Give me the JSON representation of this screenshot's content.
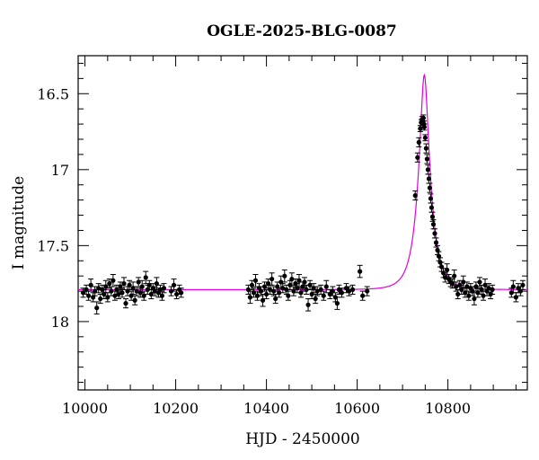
{
  "chart_data": {
    "type": "scatter",
    "title": "OGLE-2025-BLG-0087",
    "xlabel": "HJD - 2450000",
    "ylabel": "I magnitude",
    "xlim": [
      9985,
      10975
    ],
    "ylim": [
      18.45,
      16.25
    ],
    "y_inverted": true,
    "x_major_ticks": [
      10000,
      10200,
      10400,
      10600,
      10800
    ],
    "y_major_ticks": [
      16.5,
      17,
      17.5,
      18
    ],
    "y_tick_labels": [
      "16.5",
      "17",
      "17.5",
      "18"
    ],
    "x_tick_labels": [
      "10000",
      "10200",
      "10400",
      "10600",
      "10800"
    ],
    "grid": false,
    "legend": "none",
    "colors": {
      "points": "#000000",
      "model": "#e000e0",
      "axes": "#000000"
    },
    "model": {
      "baseline_mag": 17.79,
      "t0": 10748,
      "u0": 0.28,
      "tE": 28
    },
    "series": [
      {
        "values": [
          [
            9996,
            17.81,
            0.03
          ],
          [
            10003,
            17.79,
            0.03
          ],
          [
            10008,
            17.83,
            0.03
          ],
          [
            10013,
            17.76,
            0.04
          ],
          [
            10018,
            17.84,
            0.03
          ],
          [
            10022,
            17.8,
            0.03
          ],
          [
            10026,
            17.91,
            0.04
          ],
          [
            10030,
            17.78,
            0.03
          ],
          [
            10034,
            17.85,
            0.03
          ],
          [
            10038,
            17.79,
            0.03
          ],
          [
            10042,
            17.82,
            0.03
          ],
          [
            10046,
            17.77,
            0.04
          ],
          [
            10050,
            17.84,
            0.03
          ],
          [
            10054,
            17.75,
            0.03
          ],
          [
            10058,
            17.8,
            0.03
          ],
          [
            10062,
            17.73,
            0.04
          ],
          [
            10066,
            17.83,
            0.03
          ],
          [
            10070,
            17.79,
            0.03
          ],
          [
            10074,
            17.82,
            0.03
          ],
          [
            10078,
            17.77,
            0.03
          ],
          [
            10082,
            17.81,
            0.03
          ],
          [
            10086,
            17.75,
            0.04
          ],
          [
            10090,
            17.88,
            0.03
          ],
          [
            10094,
            17.8,
            0.03
          ],
          [
            10098,
            17.76,
            0.03
          ],
          [
            10102,
            17.83,
            0.03
          ],
          [
            10106,
            17.78,
            0.04
          ],
          [
            10110,
            17.86,
            0.03
          ],
          [
            10114,
            17.8,
            0.03
          ],
          [
            10118,
            17.74,
            0.03
          ],
          [
            10122,
            17.81,
            0.03
          ],
          [
            10126,
            17.77,
            0.04
          ],
          [
            10130,
            17.83,
            0.03
          ],
          [
            10134,
            17.71,
            0.04
          ],
          [
            10138,
            17.79,
            0.03
          ],
          [
            10142,
            17.76,
            0.03
          ],
          [
            10146,
            17.82,
            0.03
          ],
          [
            10150,
            17.78,
            0.03
          ],
          [
            10154,
            17.8,
            0.03
          ],
          [
            10158,
            17.75,
            0.04
          ],
          [
            10162,
            17.81,
            0.03
          ],
          [
            10166,
            17.79,
            0.03
          ],
          [
            10170,
            17.83,
            0.03
          ],
          [
            10174,
            17.78,
            0.03
          ],
          [
            10190,
            17.8,
            0.03
          ],
          [
            10196,
            17.76,
            0.04
          ],
          [
            10202,
            17.82,
            0.03
          ],
          [
            10208,
            17.79,
            0.03
          ],
          [
            10212,
            17.81,
            0.03
          ],
          [
            10360,
            17.79,
            0.03
          ],
          [
            10364,
            17.84,
            0.04
          ],
          [
            10368,
            17.76,
            0.03
          ],
          [
            10372,
            17.81,
            0.03
          ],
          [
            10376,
            17.73,
            0.04
          ],
          [
            10380,
            17.83,
            0.03
          ],
          [
            10384,
            17.78,
            0.03
          ],
          [
            10388,
            17.8,
            0.03
          ],
          [
            10392,
            17.86,
            0.04
          ],
          [
            10396,
            17.77,
            0.03
          ],
          [
            10400,
            17.82,
            0.03
          ],
          [
            10404,
            17.75,
            0.03
          ],
          [
            10408,
            17.79,
            0.03
          ],
          [
            10412,
            17.72,
            0.04
          ],
          [
            10416,
            17.8,
            0.03
          ],
          [
            10420,
            17.85,
            0.03
          ],
          [
            10424,
            17.77,
            0.03
          ],
          [
            10428,
            17.81,
            0.03
          ],
          [
            10432,
            17.74,
            0.04
          ],
          [
            10436,
            17.78,
            0.03
          ],
          [
            10440,
            17.7,
            0.04
          ],
          [
            10444,
            17.79,
            0.03
          ],
          [
            10448,
            17.83,
            0.03
          ],
          [
            10452,
            17.76,
            0.03
          ],
          [
            10456,
            17.72,
            0.04
          ],
          [
            10460,
            17.8,
            0.03
          ],
          [
            10464,
            17.75,
            0.03
          ],
          [
            10468,
            17.78,
            0.03
          ],
          [
            10472,
            17.73,
            0.04
          ],
          [
            10476,
            17.81,
            0.03
          ],
          [
            10480,
            17.77,
            0.03
          ],
          [
            10484,
            17.74,
            0.03
          ],
          [
            10488,
            17.79,
            0.03
          ],
          [
            10492,
            17.89,
            0.04
          ],
          [
            10496,
            17.76,
            0.03
          ],
          [
            10500,
            17.82,
            0.03
          ],
          [
            10504,
            17.78,
            0.03
          ],
          [
            10508,
            17.85,
            0.03
          ],
          [
            10512,
            17.8,
            0.03
          ],
          [
            10520,
            17.79,
            0.03
          ],
          [
            10526,
            17.83,
            0.03
          ],
          [
            10532,
            17.77,
            0.04
          ],
          [
            10540,
            17.82,
            0.03
          ],
          [
            10546,
            17.8,
            0.03
          ],
          [
            10552,
            17.84,
            0.03
          ],
          [
            10556,
            17.88,
            0.04
          ],
          [
            10560,
            17.79,
            0.03
          ],
          [
            10566,
            17.81,
            0.03
          ],
          [
            10576,
            17.78,
            0.03
          ],
          [
            10582,
            17.8,
            0.03
          ],
          [
            10590,
            17.79,
            0.03
          ],
          [
            10606,
            17.67,
            0.04
          ],
          [
            10612,
            17.83,
            0.03
          ],
          [
            10622,
            17.8,
            0.03
          ],
          [
            10728,
            17.17,
            0.03
          ],
          [
            10733,
            16.92,
            0.03
          ],
          [
            10736,
            16.82,
            0.03
          ],
          [
            10739,
            16.73,
            0.02
          ],
          [
            10741,
            16.69,
            0.02
          ],
          [
            10743,
            16.67,
            0.02
          ],
          [
            10745,
            16.68,
            0.02
          ],
          [
            10746,
            16.66,
            0.02
          ],
          [
            10747,
            16.7,
            0.02
          ],
          [
            10748,
            16.72,
            0.02
          ],
          [
            10750,
            16.79,
            0.02
          ],
          [
            10752,
            16.86,
            0.03
          ],
          [
            10754,
            16.93,
            0.03
          ],
          [
            10756,
            17.0,
            0.03
          ],
          [
            10758,
            17.06,
            0.03
          ],
          [
            10760,
            17.12,
            0.03
          ],
          [
            10762,
            17.19,
            0.03
          ],
          [
            10764,
            17.25,
            0.03
          ],
          [
            10766,
            17.31,
            0.03
          ],
          [
            10768,
            17.36,
            0.03
          ],
          [
            10771,
            17.42,
            0.03
          ],
          [
            10774,
            17.48,
            0.03
          ],
          [
            10777,
            17.53,
            0.03
          ],
          [
            10780,
            17.57,
            0.03
          ],
          [
            10783,
            17.61,
            0.03
          ],
          [
            10786,
            17.64,
            0.03
          ],
          [
            10790,
            17.68,
            0.03
          ],
          [
            10794,
            17.71,
            0.03
          ],
          [
            10798,
            17.66,
            0.04
          ],
          [
            10802,
            17.72,
            0.03
          ],
          [
            10806,
            17.74,
            0.03
          ],
          [
            10810,
            17.75,
            0.03
          ],
          [
            10814,
            17.7,
            0.04
          ],
          [
            10818,
            17.77,
            0.03
          ],
          [
            10822,
            17.82,
            0.03
          ],
          [
            10826,
            17.76,
            0.03
          ],
          [
            10830,
            17.79,
            0.03
          ],
          [
            10834,
            17.74,
            0.04
          ],
          [
            10838,
            17.81,
            0.03
          ],
          [
            10842,
            17.77,
            0.03
          ],
          [
            10846,
            17.83,
            0.03
          ],
          [
            10850,
            17.78,
            0.03
          ],
          [
            10854,
            17.8,
            0.03
          ],
          [
            10858,
            17.85,
            0.04
          ],
          [
            10862,
            17.77,
            0.03
          ],
          [
            10866,
            17.81,
            0.03
          ],
          [
            10870,
            17.74,
            0.03
          ],
          [
            10874,
            17.79,
            0.03
          ],
          [
            10878,
            17.83,
            0.03
          ],
          [
            10882,
            17.76,
            0.04
          ],
          [
            10886,
            17.8,
            0.03
          ],
          [
            10890,
            17.78,
            0.03
          ],
          [
            10894,
            17.82,
            0.03
          ],
          [
            10898,
            17.79,
            0.03
          ],
          [
            10940,
            17.81,
            0.03
          ],
          [
            10944,
            17.77,
            0.04
          ],
          [
            10950,
            17.84,
            0.03
          ],
          [
            10955,
            17.78,
            0.03
          ],
          [
            10960,
            17.8,
            0.03
          ],
          [
            10965,
            17.76,
            0.03
          ]
        ]
      }
    ]
  }
}
